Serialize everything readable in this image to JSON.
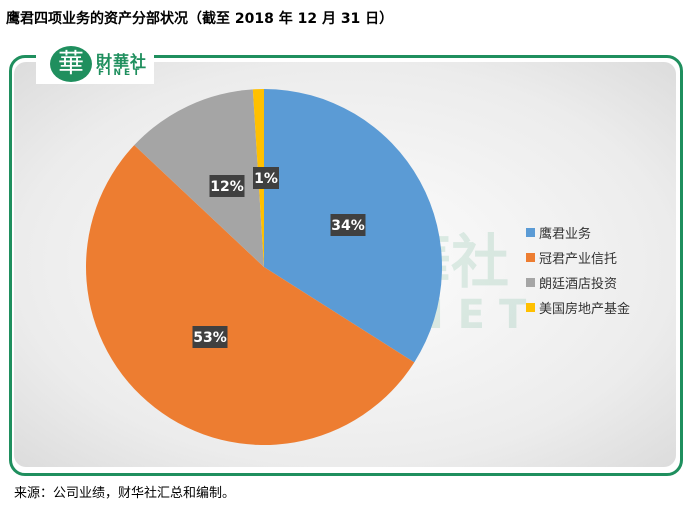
{
  "title": "鹰君四项业务的资产分部状况（截至 2018 年 12 月 31 日）",
  "logo": {
    "mark": "華",
    "name": "財華社",
    "sub": "FINET"
  },
  "watermark": {
    "name": "財華社",
    "sub": "FINET"
  },
  "source": "来源：公司业绩，财华社汇总和编制。",
  "colors": {
    "frame": "#1f8f5e",
    "label_bg": "#404040"
  },
  "chart_data": {
    "type": "pie",
    "title": "",
    "start_angle_deg": 0,
    "direction": "clockwise",
    "legend_position": "right",
    "slices": [
      {
        "name": "鹰君业务",
        "value": 34,
        "label": "34%",
        "color": "#5b9bd5"
      },
      {
        "name": "冠君产业信托",
        "value": 53,
        "label": "53%",
        "color": "#ed7d31"
      },
      {
        "name": "朗廷酒店投资",
        "value": 12,
        "label": "12%",
        "color": "#a5a5a5"
      },
      {
        "name": "美国房地产基金",
        "value": 1,
        "label": "1%",
        "color": "#ffc000"
      }
    ]
  }
}
